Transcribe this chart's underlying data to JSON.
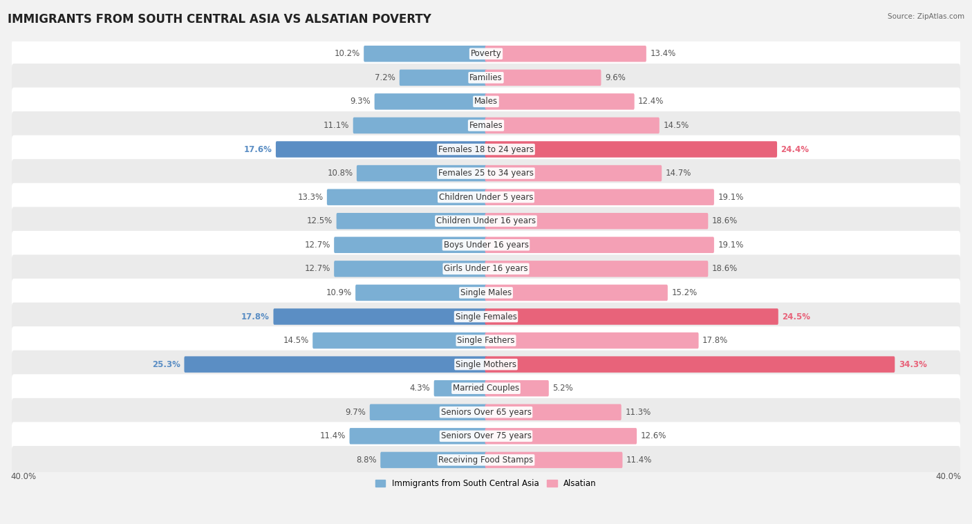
{
  "title": "IMMIGRANTS FROM SOUTH CENTRAL ASIA VS ALSATIAN POVERTY",
  "source": "Source: ZipAtlas.com",
  "categories": [
    "Poverty",
    "Families",
    "Males",
    "Females",
    "Females 18 to 24 years",
    "Females 25 to 34 years",
    "Children Under 5 years",
    "Children Under 16 years",
    "Boys Under 16 years",
    "Girls Under 16 years",
    "Single Males",
    "Single Females",
    "Single Fathers",
    "Single Mothers",
    "Married Couples",
    "Seniors Over 65 years",
    "Seniors Over 75 years",
    "Receiving Food Stamps"
  ],
  "left_values": [
    10.2,
    7.2,
    9.3,
    11.1,
    17.6,
    10.8,
    13.3,
    12.5,
    12.7,
    12.7,
    10.9,
    17.8,
    14.5,
    25.3,
    4.3,
    9.7,
    11.4,
    8.8
  ],
  "right_values": [
    13.4,
    9.6,
    12.4,
    14.5,
    24.4,
    14.7,
    19.1,
    18.6,
    19.1,
    18.6,
    15.2,
    24.5,
    17.8,
    34.3,
    5.2,
    11.3,
    12.6,
    11.4
  ],
  "left_color": "#7bafd4",
  "right_color": "#f4a0b5",
  "highlight_left_color": "#5b8ec4",
  "highlight_right_color": "#e8637a",
  "highlight_rows": [
    4,
    11,
    13
  ],
  "max_val": 40.0,
  "bg_color": "#f2f2f2",
  "row_bg_even": "#ffffff",
  "row_bg_odd": "#ebebeb",
  "label_fontsize": 8.5,
  "title_fontsize": 12,
  "legend_left": "Immigrants from South Central Asia",
  "legend_right": "Alsatian"
}
